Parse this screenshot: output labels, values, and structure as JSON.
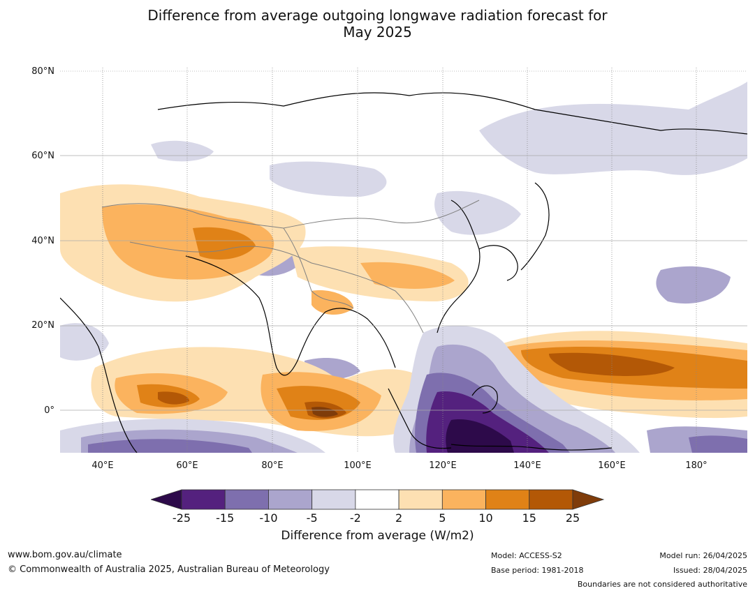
{
  "title_line1": "Difference from average outgoing longwave radiation forecast for",
  "title_line2": "May 2025",
  "lat_labels": [
    "80°N",
    "60°N",
    "40°N",
    "20°N",
    "0°"
  ],
  "lon_labels": [
    "40°E",
    "60°E",
    "80°E",
    "100°E",
    "120°E",
    "140°E",
    "160°E",
    "180°"
  ],
  "colorbar": {
    "ticks": [
      "-25",
      "-15",
      "-10",
      "-5",
      "-2",
      "2",
      "5",
      "10",
      "15",
      "25"
    ],
    "colors": [
      "#2d0a4a",
      "#54217e",
      "#7e6fae",
      "#aba5cd",
      "#d8d8e8",
      "#ffffff",
      "#fde0b2",
      "#fbb35e",
      "#e08217",
      "#b35806",
      "#7f3c0a"
    ],
    "label": "Difference from average (W/m2)"
  },
  "footer": {
    "website": "www.bom.gov.au/climate",
    "copyright": "© Commonwealth of Australia 2025, Australian Bureau of Meteorology",
    "model": "Model: ACCESS-S2",
    "base_period": "Base period: 1981-2018",
    "model_run": "Model run: 26/04/2025",
    "issued": "Issued: 28/04/2025",
    "disclaimer": "Boundaries are not considered authoritative"
  }
}
